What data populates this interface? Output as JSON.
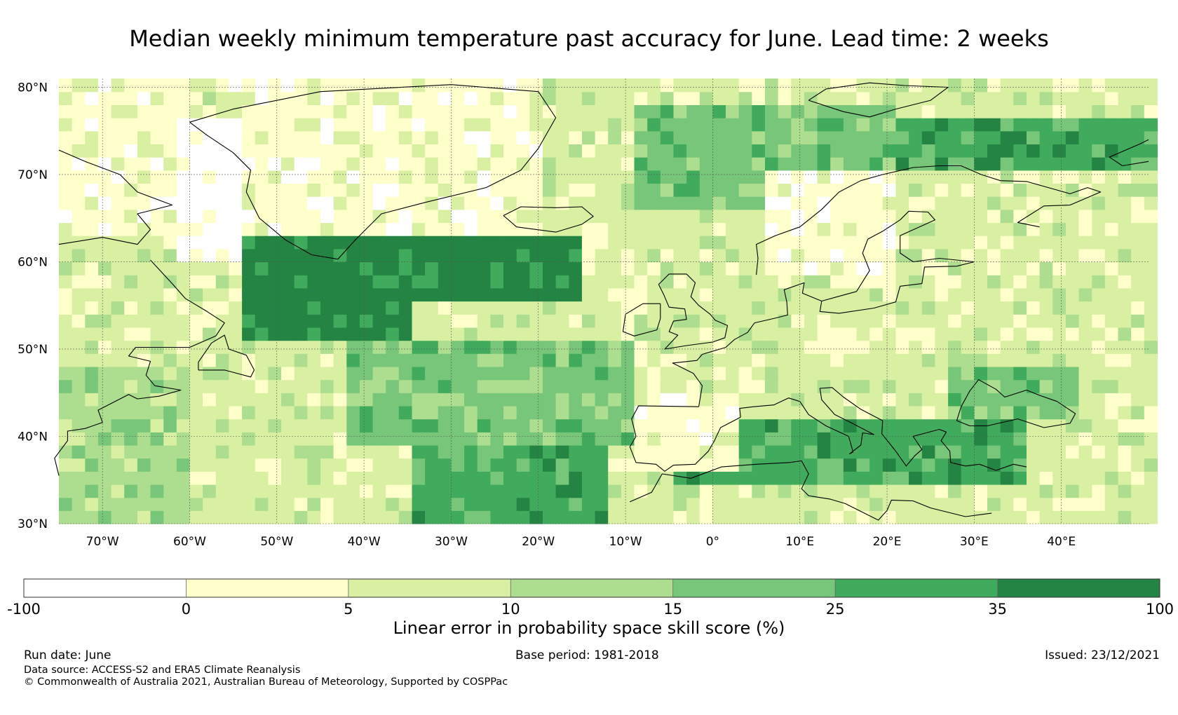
{
  "title": "Median weekly minimum temperature past accuracy for June. Lead time: 2 weeks",
  "map": {
    "lat_range": [
      30,
      81
    ],
    "lon_range": [
      -75,
      50
    ],
    "lat_ticks": [
      {
        "value": 80,
        "label": "80°N"
      },
      {
        "value": 70,
        "label": "70°N"
      },
      {
        "value": 60,
        "label": "60°N"
      },
      {
        "value": 50,
        "label": "50°N"
      },
      {
        "value": 40,
        "label": "40°N"
      },
      {
        "value": 30,
        "label": "30°N"
      }
    ],
    "lon_ticks": [
      {
        "value": -70,
        "label": "70°W"
      },
      {
        "value": -60,
        "label": "60°W"
      },
      {
        "value": -50,
        "label": "50°W"
      },
      {
        "value": -40,
        "label": "40°W"
      },
      {
        "value": -30,
        "label": "30°W"
      },
      {
        "value": -20,
        "label": "20°W"
      },
      {
        "value": -10,
        "label": "10°W"
      },
      {
        "value": 0,
        "label": "0°"
      },
      {
        "value": 10,
        "label": "10°E"
      },
      {
        "value": 20,
        "label": "20°E"
      },
      {
        "value": 30,
        "label": "30°E"
      },
      {
        "value": 40,
        "label": "40°E"
      }
    ],
    "cell_size_deg": 1.5,
    "regions": [
      {
        "name": "greenland-interior",
        "lon": [
          -58,
          -20
        ],
        "lat": [
          62,
          82
        ],
        "level": 1
      },
      {
        "name": "canada-north",
        "lon": [
          -75,
          -60
        ],
        "lat": [
          62,
          82
        ],
        "level": 1
      },
      {
        "name": "labrador-ice",
        "lon": [
          -62,
          -55
        ],
        "lat": [
          60,
          76
        ],
        "level": 0
      },
      {
        "name": "north-atlantic-core",
        "lon": [
          -55,
          -35
        ],
        "lat": [
          50,
          62
        ],
        "level": 6
      },
      {
        "name": "iceland-sea",
        "lon": [
          -35,
          -15
        ],
        "lat": [
          55,
          62
        ],
        "level": 6
      },
      {
        "name": "mid-atlantic",
        "lon": [
          -42,
          -10
        ],
        "lat": [
          38,
          50
        ],
        "level": 4
      },
      {
        "name": "subtropical-atlantic",
        "lon": [
          -35,
          -12
        ],
        "lat": [
          30,
          38
        ],
        "level": 5
      },
      {
        "name": "norwegian-sea",
        "lon": [
          -10,
          20
        ],
        "lat": [
          65,
          78
        ],
        "level": 4
      },
      {
        "name": "barents-sea",
        "lon": [
          20,
          50
        ],
        "lat": [
          70,
          76
        ],
        "level": 5
      },
      {
        "name": "scandinavia",
        "lon": [
          5,
          20
        ],
        "lat": [
          58,
          70
        ],
        "level": 1
      },
      {
        "name": "eastern-europe",
        "lon": [
          20,
          50
        ],
        "lat": [
          45,
          68
        ],
        "level": 2
      },
      {
        "name": "western-europe",
        "lon": [
          -5,
          20
        ],
        "lat": [
          45,
          55
        ],
        "level": 2
      },
      {
        "name": "mediterranean",
        "lon": [
          -5,
          35
        ],
        "lat": [
          31,
          41
        ],
        "level": 5
      },
      {
        "name": "black-sea",
        "lon": [
          27,
          42
        ],
        "lat": [
          41,
          47
        ],
        "level": 4
      },
      {
        "name": "iberia",
        "lon": [
          -10,
          3
        ],
        "lat": [
          36,
          44
        ],
        "level": 1
      },
      {
        "name": "north-africa",
        "lon": [
          -10,
          45
        ],
        "lat": [
          30,
          34
        ],
        "level": 2
      },
      {
        "name": "us-east",
        "lon": [
          -75,
          -60
        ],
        "lat": [
          30,
          48
        ],
        "level": 3
      }
    ]
  },
  "colorbar": {
    "colors": [
      "#ffffff",
      "#ffffcc",
      "#d9f0a3",
      "#addd8e",
      "#78c679",
      "#41ab5d",
      "#238443"
    ],
    "ticks": [
      "-100",
      "0",
      "5",
      "10",
      "15",
      "25",
      "35",
      "100"
    ],
    "label": "Linear error in probability space skill score (%)"
  },
  "footer": {
    "run_date": "Run date: June",
    "base_period": "Base period: 1981-2018",
    "issued": "Issued: 23/12/2021",
    "data_source": "Data source: ACCESS-S2 and ERA5 Climate Reanalysis",
    "copyright": "© Commonwealth of Australia 2021, Australian Bureau of Meteorology, Supported by COSPPac"
  }
}
